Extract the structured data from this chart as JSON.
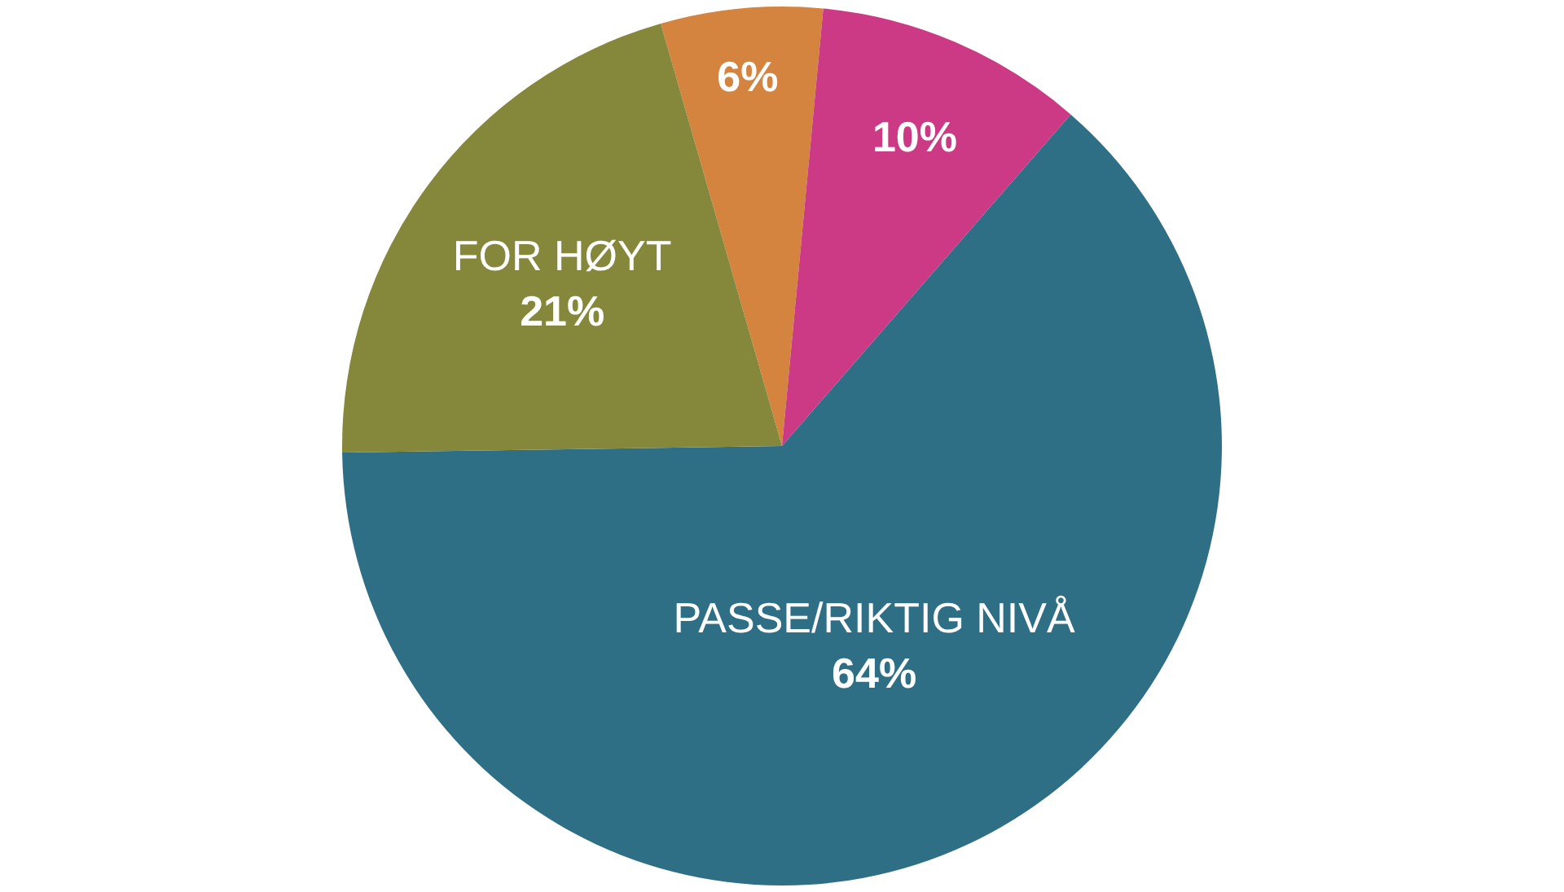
{
  "chart_data": {
    "type": "pie",
    "categories": [
      null,
      null,
      "PASSE/RIKTIG NIVÅ",
      "FOR HØYT"
    ],
    "values": [
      6,
      10,
      64,
      21
    ],
    "value_labels": [
      "6%",
      "10%",
      "64%",
      "21%"
    ],
    "colors": [
      "#d4843f",
      "#cc3a86",
      "#2f6f85",
      "#85883a"
    ],
    "legend": false
  }
}
